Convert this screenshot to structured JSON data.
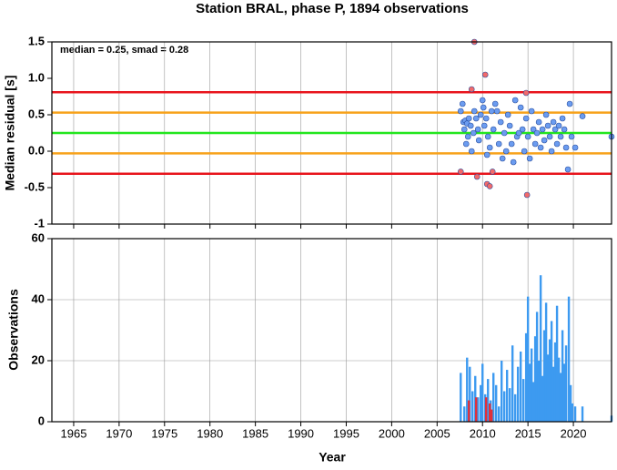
{
  "chart_data": [
    {
      "type": "scatter",
      "title": "Station BRAL, phase P, 1894 observations",
      "annotation": "median = 0.25, smad = 0.28",
      "ylabel": "Median residual [s]",
      "xlim": [
        1962.6,
        2024.2
      ],
      "ylim": [
        -1,
        1.5
      ],
      "yticks": [
        -1,
        -0.5,
        {
          "value": 0,
          "label": "0.0"
        },
        0.5,
        {
          "value": 1,
          "label": "1.0"
        },
        1.5
      ],
      "hlines": [
        {
          "value": 0.81,
          "color": "#e8141c"
        },
        {
          "value": 0.53,
          "color": "#f7a21b"
        },
        {
          "value": 0.25,
          "color": "#22e61e"
        },
        {
          "value": -0.03,
          "color": "#f7a21b"
        },
        {
          "value": -0.31,
          "color": "#e8141c"
        }
      ],
      "series": [
        {
          "color": "#6b9cf0",
          "x": [
            2007.6,
            2007.8,
            2007.9,
            2008.0,
            2008.1,
            2008.2,
            2008.3,
            2008.4,
            2008.5,
            2008.7,
            2008.8,
            2009.0,
            2009.1,
            2009.3,
            2009.5,
            2009.6,
            2009.8,
            2010.0,
            2010.1,
            2010.2,
            2010.4,
            2010.5,
            2010.6,
            2010.8,
            2011.0,
            2011.2,
            2011.4,
            2011.6,
            2011.8,
            2012.0,
            2012.2,
            2012.4,
            2012.6,
            2012.8,
            2013.0,
            2013.2,
            2013.4,
            2013.6,
            2013.8,
            2014.0,
            2014.2,
            2014.4,
            2014.6,
            2014.8,
            2015.0,
            2015.2,
            2015.4,
            2015.6,
            2015.8,
            2016.0,
            2016.2,
            2016.4,
            2016.6,
            2016.8,
            2017.0,
            2017.2,
            2017.4,
            2017.6,
            2017.8,
            2018.0,
            2018.2,
            2018.4,
            2018.6,
            2018.8,
            2019.0,
            2019.2,
            2019.4,
            2019.6,
            2019.8,
            2020.2,
            2021.0,
            2024.2
          ],
          "values": [
            0.55,
            0.65,
            0.4,
            0.3,
            0.42,
            0.1,
            0.38,
            0.2,
            0.45,
            0.35,
            0.0,
            0.25,
            0.55,
            0.45,
            0.3,
            0.15,
            0.5,
            0.7,
            0.6,
            0.35,
            0.45,
            -0.05,
            0.2,
            0.05,
            0.55,
            0.3,
            0.65,
            0.55,
            0.1,
            0.4,
            -0.1,
            0.25,
            0.0,
            0.5,
            0.35,
            0.1,
            -0.15,
            0.7,
            0.2,
            0.25,
            0.6,
            0.3,
            0.0,
            0.45,
            0.2,
            -0.1,
            0.55,
            0.3,
            0.1,
            0.25,
            0.4,
            0.05,
            0.3,
            0.15,
            0.5,
            0.35,
            0.2,
            0.0,
            0.4,
            0.3,
            0.1,
            0.35,
            0.2,
            0.45,
            0.3,
            0.05,
            -0.25,
            0.65,
            0.2,
            0.05,
            0.48,
            0.2
          ]
        },
        {
          "color": "#f26a6a",
          "x": [
            2007.6,
            2008.8,
            2009.1,
            2009.4,
            2010.3,
            2010.5,
            2010.8,
            2011.1,
            2014.8,
            2014.9
          ],
          "values": [
            -0.28,
            0.85,
            1.5,
            -0.35,
            1.05,
            -0.45,
            -0.48,
            -0.28,
            0.8,
            -0.6
          ]
        }
      ]
    },
    {
      "type": "bar",
      "xlabel": "Year",
      "ylabel": "Observations",
      "xlim": [
        1962.6,
        2024.2
      ],
      "ylim": [
        0,
        60
      ],
      "yticks": [
        0,
        20,
        40,
        60
      ],
      "xticks": [
        1965,
        1970,
        1975,
        1980,
        1985,
        1990,
        1995,
        2000,
        2005,
        2010,
        2015,
        2020
      ],
      "series": [
        {
          "color": "#3d9af0",
          "x": [
            2007.6,
            2008.0,
            2008.3,
            2008.6,
            2008.9,
            2009.2,
            2009.5,
            2009.8,
            2010.0,
            2010.3,
            2010.6,
            2010.9,
            2011.2,
            2011.5,
            2011.8,
            2012.1,
            2012.4,
            2012.7,
            2013.0,
            2013.3,
            2013.6,
            2013.9,
            2014.2,
            2014.5,
            2014.8,
            2015.0,
            2015.2,
            2015.4,
            2015.6,
            2015.8,
            2016.0,
            2016.2,
            2016.4,
            2016.6,
            2016.8,
            2017.0,
            2017.2,
            2017.4,
            2017.6,
            2017.8,
            2018.0,
            2018.2,
            2018.4,
            2018.6,
            2018.8,
            2019.0,
            2019.2,
            2019.5,
            2019.7,
            2019.9,
            2020.2,
            2021.0,
            2024.2
          ],
          "values": [
            16,
            5,
            21,
            18,
            10,
            15,
            8,
            12,
            19,
            9,
            14,
            7,
            16,
            12,
            5,
            20,
            10,
            17,
            11,
            25,
            9,
            18,
            23,
            14,
            29,
            41,
            19,
            24,
            13,
            28,
            36,
            20,
            48,
            15,
            30,
            39,
            22,
            27,
            33,
            18,
            26,
            38,
            21,
            16,
            30,
            19,
            25,
            41,
            12,
            6,
            5,
            5,
            2
          ]
        },
        {
          "color": "#e0303a",
          "x": [
            2008.5,
            2009.3,
            2010.4,
            2010.8,
            2011.0
          ],
          "values": [
            7,
            8,
            8,
            6,
            4
          ]
        }
      ]
    }
  ]
}
